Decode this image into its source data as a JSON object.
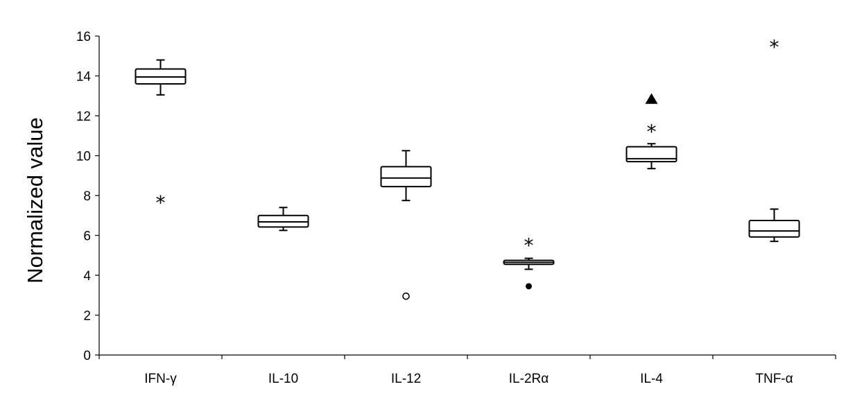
{
  "chart_data": {
    "type": "box",
    "title": "",
    "xlabel": "",
    "ylabel": "Normalized value",
    "ylim": [
      0,
      16
    ],
    "yticks": [
      0,
      2,
      4,
      6,
      8,
      10,
      12,
      14,
      16
    ],
    "categories": [
      "IFN-γ",
      "IL-10",
      "IL-12",
      "IL-2Rα",
      "IL-4",
      "TNF-α"
    ],
    "boxes": [
      {
        "category": "IFN-γ",
        "whisker_low": 13.05,
        "q1": 13.6,
        "median": 13.95,
        "q3": 14.35,
        "whisker_high": 14.8,
        "outliers": [
          {
            "value": 7.8,
            "marker": "asterisk"
          }
        ]
      },
      {
        "category": "IL-10",
        "whisker_low": 6.25,
        "q1": 6.42,
        "median": 6.68,
        "q3": 7.0,
        "whisker_high": 7.4,
        "outliers": []
      },
      {
        "category": "IL-12",
        "whisker_low": 7.75,
        "q1": 8.45,
        "median": 8.88,
        "q3": 9.45,
        "whisker_high": 10.25,
        "outliers": [
          {
            "value": 2.95,
            "marker": "open-circle"
          }
        ]
      },
      {
        "category": "IL-2Rα",
        "whisker_low": 4.3,
        "q1": 4.55,
        "median": 4.65,
        "q3": 4.75,
        "whisker_high": 4.85,
        "outliers": [
          {
            "value": 5.65,
            "marker": "asterisk"
          },
          {
            "value": 3.45,
            "marker": "filled-circle"
          }
        ]
      },
      {
        "category": "IL-4",
        "whisker_low": 9.35,
        "q1": 9.7,
        "median": 9.85,
        "q3": 10.45,
        "whisker_high": 10.6,
        "outliers": [
          {
            "value": 11.35,
            "marker": "asterisk"
          },
          {
            "value": 12.85,
            "marker": "filled-triangle"
          }
        ]
      },
      {
        "category": "TNF-α",
        "whisker_low": 5.7,
        "q1": 5.92,
        "median": 6.22,
        "q3": 6.75,
        "whisker_high": 7.32,
        "outliers": [
          {
            "value": 15.6,
            "marker": "asterisk"
          }
        ]
      }
    ],
    "grid": false,
    "legend": "none"
  }
}
